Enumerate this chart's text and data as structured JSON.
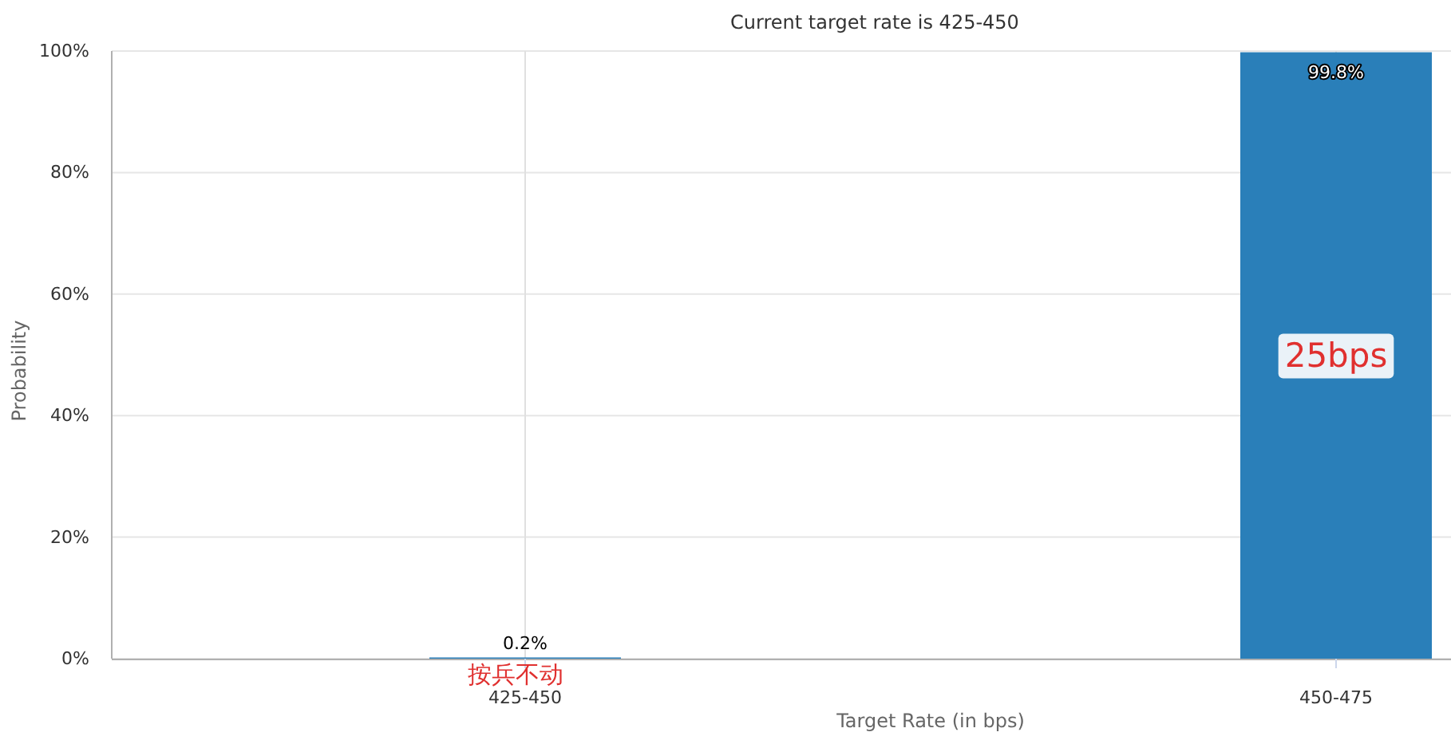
{
  "chart_data": {
    "type": "bar",
    "title": "Current target rate is 425-450",
    "xlabel": "Target Rate (in bps)",
    "ylabel": "Probability",
    "categories": [
      "425-450",
      "450-475"
    ],
    "values": [
      0.2,
      99.8
    ],
    "value_labels": [
      "0.2%",
      "99.8%"
    ],
    "color": "#2a7fb9",
    "ylim": [
      0,
      100
    ],
    "yticks": [
      {
        "value": 0,
        "label": "0%"
      },
      {
        "value": 20,
        "label": "20%"
      },
      {
        "value": 40,
        "label": "40%"
      },
      {
        "value": 60,
        "label": "60%"
      },
      {
        "value": 80,
        "label": "80%"
      },
      {
        "value": 100,
        "label": "100%"
      }
    ],
    "grid": true,
    "annotations": [
      "按兵不动",
      "25bps"
    ]
  }
}
